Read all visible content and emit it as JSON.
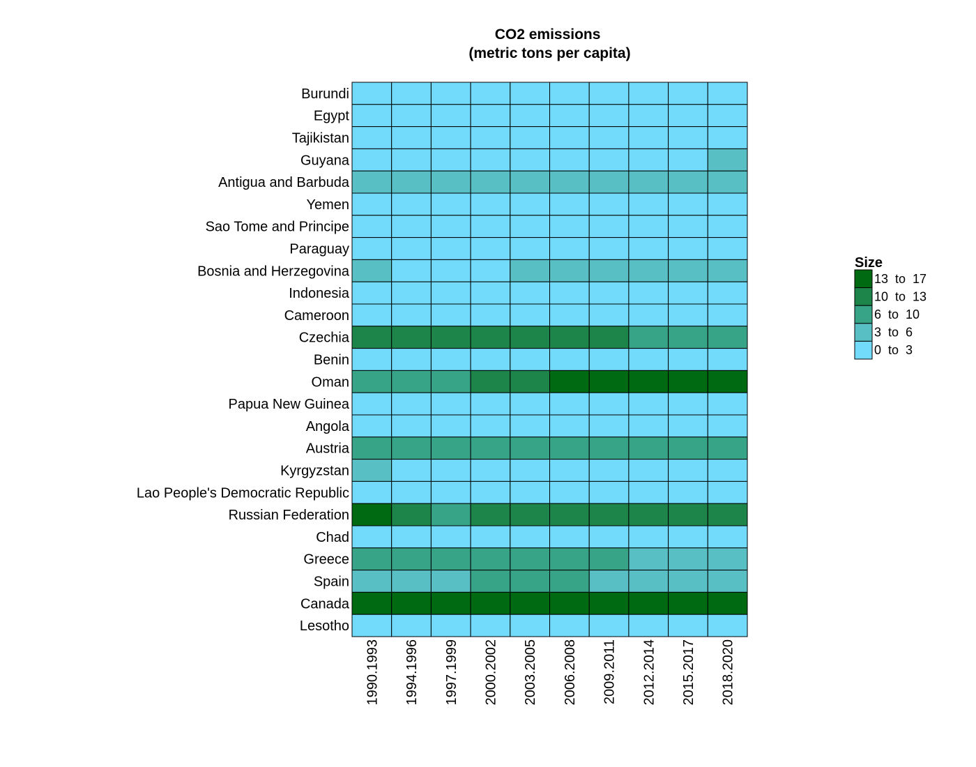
{
  "chart_data": {
    "type": "heatmap",
    "title": "CO2 emissions\n(metric tons per capita)",
    "x": [
      "1990.1993",
      "1994.1996",
      "1997.1999",
      "2000.2002",
      "2003.2005",
      "2006.2008",
      "2009.2011",
      "2012.2014",
      "2015.2017",
      "2018.2020"
    ],
    "y": [
      "Burundi",
      "Egypt",
      "Tajikistan",
      "Guyana",
      "Antigua and Barbuda",
      "Yemen",
      "Sao Tome and Principe",
      "Paraguay",
      "Bosnia and Herzegovina",
      "Indonesia",
      "Cameroon",
      "Czechia",
      "Benin",
      "Oman",
      "Papua New Guinea",
      "Angola",
      "Austria",
      "Kyrgyzstan",
      "Lao People's Democratic Republic",
      "Russian Federation",
      "Chad",
      "Greece",
      "Spain",
      "Canada",
      "Lesotho"
    ],
    "value_bins_note": "cells hold the legend bin index: 0 = 0 to 3, 1 = 3 to 6, 2 = 6 to 10, 3 = 10 to 13, 4 = 13 to 17",
    "values": [
      [
        0,
        0,
        0,
        0,
        0,
        0,
        0,
        0,
        0,
        0
      ],
      [
        0,
        0,
        0,
        0,
        0,
        0,
        0,
        0,
        0,
        0
      ],
      [
        0,
        0,
        0,
        0,
        0,
        0,
        0,
        0,
        0,
        0
      ],
      [
        0,
        0,
        0,
        0,
        0,
        0,
        0,
        0,
        0,
        1
      ],
      [
        1,
        1,
        1,
        1,
        1,
        1,
        1,
        1,
        1,
        1
      ],
      [
        0,
        0,
        0,
        0,
        0,
        0,
        0,
        0,
        0,
        0
      ],
      [
        0,
        0,
        0,
        0,
        0,
        0,
        0,
        0,
        0,
        0
      ],
      [
        0,
        0,
        0,
        0,
        0,
        0,
        0,
        0,
        0,
        0
      ],
      [
        1,
        0,
        0,
        0,
        1,
        1,
        1,
        1,
        1,
        1
      ],
      [
        0,
        0,
        0,
        0,
        0,
        0,
        0,
        0,
        0,
        0
      ],
      [
        0,
        0,
        0,
        0,
        0,
        0,
        0,
        0,
        0,
        0
      ],
      [
        3,
        3,
        3,
        3,
        3,
        3,
        3,
        2,
        2,
        2
      ],
      [
        0,
        0,
        0,
        0,
        0,
        0,
        0,
        0,
        0,
        0
      ],
      [
        2,
        2,
        2,
        3,
        3,
        4,
        4,
        4,
        4,
        4
      ],
      [
        0,
        0,
        0,
        0,
        0,
        0,
        0,
        0,
        0,
        0
      ],
      [
        0,
        0,
        0,
        0,
        0,
        0,
        0,
        0,
        0,
        0
      ],
      [
        2,
        2,
        2,
        2,
        2,
        2,
        2,
        2,
        2,
        2
      ],
      [
        1,
        0,
        0,
        0,
        0,
        0,
        0,
        0,
        0,
        0
      ],
      [
        0,
        0,
        0,
        0,
        0,
        0,
        0,
        0,
        0,
        0
      ],
      [
        4,
        3,
        2,
        3,
        3,
        3,
        3,
        3,
        3,
        3
      ],
      [
        0,
        0,
        0,
        0,
        0,
        0,
        0,
        0,
        0,
        0
      ],
      [
        2,
        2,
        2,
        2,
        2,
        2,
        2,
        1,
        1,
        1
      ],
      [
        1,
        1,
        1,
        2,
        2,
        2,
        1,
        1,
        1,
        1
      ],
      [
        4,
        4,
        4,
        4,
        4,
        4,
        4,
        4,
        4,
        4
      ],
      [
        0,
        0,
        0,
        0,
        0,
        0,
        0,
        0,
        0,
        0
      ]
    ],
    "legend": {
      "title": "Size",
      "placement": "right",
      "bins": [
        {
          "label": "13  to  17",
          "color": "#006a12"
        },
        {
          "label": "10  to  13",
          "color": "#1d8549"
        },
        {
          "label": "6  to  10",
          "color": "#37a387"
        },
        {
          "label": "3  to  6",
          "color": "#58c0c4"
        },
        {
          "label": "0  to  3",
          "color": "#72dbfc"
        }
      ]
    },
    "bin_colors": [
      "#72dbfc",
      "#58c0c4",
      "#37a387",
      "#1d8549",
      "#006a12"
    ],
    "grid": true
  }
}
